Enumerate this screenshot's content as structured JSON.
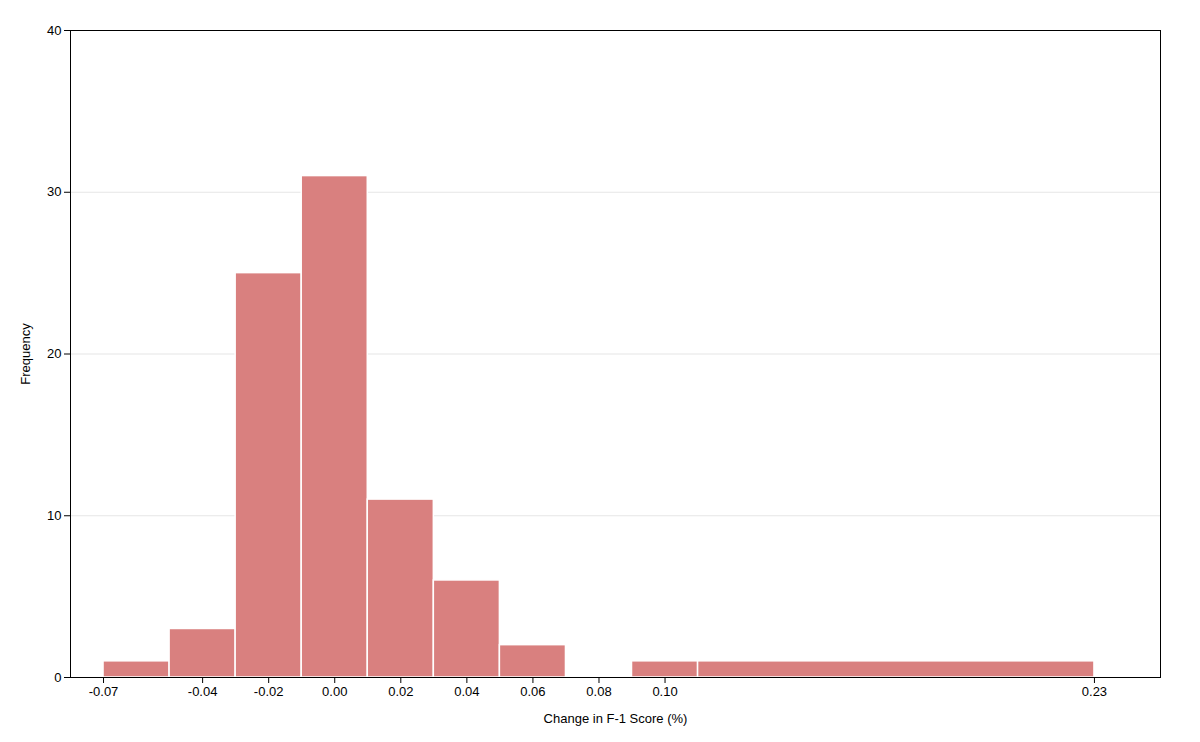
{
  "chart_data": {
    "type": "histogram",
    "xlabel": "Change in F-1 Score (%)",
    "ylabel": "Frequency",
    "bins": [
      -0.07,
      -0.05,
      -0.03,
      -0.01,
      0.01,
      0.03,
      0.05,
      0.07,
      0.09,
      0.11,
      0.23
    ],
    "values": [
      1,
      3,
      25,
      31,
      11,
      6,
      2,
      0,
      1,
      1
    ],
    "color": "#d9807f",
    "xlim": [
      -0.08,
      0.25
    ],
    "ylim": [
      0,
      40
    ],
    "xticks": [
      -0.07,
      -0.04,
      -0.02,
      {
        "value": 0,
        "label": "0.00"
      },
      0.02,
      0.04,
      0.06,
      0.08,
      {
        "value": 0.1,
        "label": "0.10"
      },
      0.23
    ],
    "yticks": [
      0,
      10,
      20,
      30,
      40
    ],
    "grid": "y"
  }
}
